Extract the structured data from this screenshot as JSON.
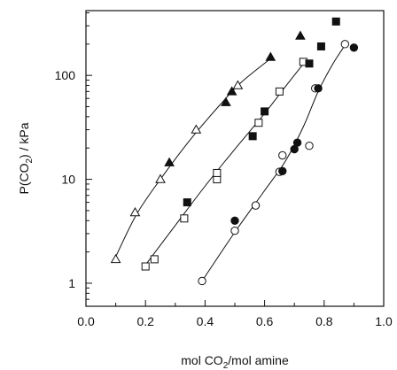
{
  "chart_data": {
    "type": "scatter",
    "title": "",
    "xlabel": {
      "prefix": "mol CO",
      "sub": "2",
      "suffix": "/mol amine"
    },
    "ylabel": {
      "prefix": "P(CO",
      "sub": "2",
      "suffix": ") / kPa"
    },
    "xlim": [
      0.0,
      1.0
    ],
    "ylim": [
      0.6,
      420
    ],
    "yscale": "log",
    "x_ticks": [
      0.0,
      0.2,
      0.4,
      0.6,
      0.8,
      1.0
    ],
    "x_tick_labels": [
      "0.0",
      "0.2",
      "0.4",
      "0.6",
      "0.8",
      "1.0"
    ],
    "y_ticks": [
      1,
      10,
      100
    ],
    "y_tick_labels": [
      "1",
      "10",
      "100"
    ],
    "grid": false,
    "legend": "none",
    "series": [
      {
        "marker": "triangle-open",
        "points": [
          [
            0.1,
            1.7
          ],
          [
            0.165,
            4.8
          ],
          [
            0.25,
            10
          ],
          [
            0.37,
            30
          ],
          [
            0.51,
            80
          ]
        ]
      },
      {
        "marker": "triangle-filled",
        "points": [
          [
            0.28,
            14.5
          ],
          [
            0.47,
            55
          ],
          [
            0.49,
            70
          ],
          [
            0.62,
            150
          ],
          [
            0.72,
            240
          ]
        ]
      },
      {
        "marker": "square-open",
        "points": [
          [
            0.2,
            1.45
          ],
          [
            0.23,
            1.7
          ],
          [
            0.33,
            4.2
          ],
          [
            0.44,
            10
          ],
          [
            0.44,
            11.5
          ],
          [
            0.58,
            35
          ],
          [
            0.65,
            70
          ],
          [
            0.73,
            135
          ]
        ]
      },
      {
        "marker": "square-filled",
        "points": [
          [
            0.34,
            6
          ],
          [
            0.56,
            26
          ],
          [
            0.6,
            45
          ],
          [
            0.75,
            130
          ],
          [
            0.79,
            190
          ],
          [
            0.84,
            330
          ]
        ]
      },
      {
        "marker": "circle-open",
        "points": [
          [
            0.39,
            1.05
          ],
          [
            0.5,
            3.2
          ],
          [
            0.57,
            5.6
          ],
          [
            0.65,
            11.8
          ],
          [
            0.66,
            17
          ],
          [
            0.75,
            21
          ],
          [
            0.77,
            75
          ],
          [
            0.87,
            200
          ]
        ]
      },
      {
        "marker": "circle-filled",
        "points": [
          [
            0.5,
            4.0
          ],
          [
            0.66,
            12
          ],
          [
            0.7,
            19.5
          ],
          [
            0.71,
            22.5
          ],
          [
            0.78,
            75
          ],
          [
            0.9,
            185
          ]
        ]
      }
    ],
    "fit_curves": [
      {
        "points": [
          [
            0.1,
            1.8
          ],
          [
            0.17,
            4.6
          ],
          [
            0.25,
            10
          ],
          [
            0.35,
            24
          ],
          [
            0.45,
            52
          ],
          [
            0.52,
            85
          ],
          [
            0.62,
            145
          ]
        ]
      },
      {
        "points": [
          [
            0.2,
            1.5
          ],
          [
            0.3,
            3.6
          ],
          [
            0.4,
            8.6
          ],
          [
            0.5,
            19.5
          ],
          [
            0.6,
            43
          ],
          [
            0.68,
            85
          ],
          [
            0.74,
            140
          ]
        ]
      },
      {
        "points": [
          [
            0.39,
            1.05
          ],
          [
            0.5,
            3.1
          ],
          [
            0.6,
            7.8
          ],
          [
            0.67,
            15
          ],
          [
            0.73,
            32
          ],
          [
            0.78,
            70
          ],
          [
            0.83,
            130
          ],
          [
            0.87,
            195
          ]
        ]
      }
    ]
  }
}
